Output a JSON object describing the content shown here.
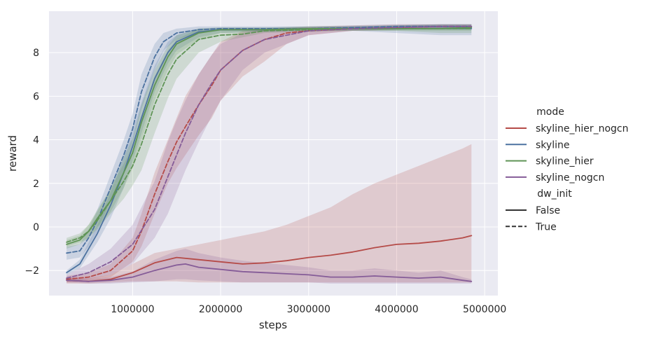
{
  "chart_data": {
    "type": "line",
    "title": "",
    "xlabel": "steps",
    "ylabel": "reward",
    "xlim": [
      50000,
      5150000
    ],
    "ylim": [
      -3.15,
      9.9
    ],
    "x_ticks": [
      1000000,
      2000000,
      3000000,
      4000000,
      5000000
    ],
    "x_tick_labels": [
      "1000000",
      "2000000",
      "3000000",
      "4000000",
      "5000000"
    ],
    "y_ticks": [
      -2,
      0,
      2,
      4,
      6,
      8
    ],
    "y_tick_labels": [
      "−2",
      "0",
      "2",
      "4",
      "6",
      "8"
    ],
    "grid": true,
    "background": "#eaeaf2",
    "legend": {
      "placement": "right-outside",
      "hue_title": "mode",
      "style_title": "dw_init",
      "hue_entries": [
        {
          "label": "skyline_hier_nogcn",
          "color": "#b54b48"
        },
        {
          "label": "skyline",
          "color": "#4c72a0"
        },
        {
          "label": "skyline_hier",
          "color": "#5f9456"
        },
        {
          "label": "skyline_nogcn",
          "color": "#855c98"
        }
      ],
      "style_entries": [
        {
          "label": "False",
          "dash": "solid"
        },
        {
          "label": "True",
          "dash": "dashed"
        }
      ]
    },
    "series": [
      {
        "mode": "skyline_hier_nogcn",
        "dw_init": "False",
        "color": "#b54b48",
        "dashed": false,
        "x": [
          250000,
          500000,
          750000,
          1000000,
          1250000,
          1500000,
          1750000,
          2000000,
          2250000,
          2500000,
          2750000,
          3000000,
          3250000,
          3500000,
          3750000,
          4000000,
          4250000,
          4500000,
          4750000,
          4850000
        ],
        "y": [
          -2.45,
          -2.5,
          -2.4,
          -2.1,
          -1.65,
          -1.4,
          -1.5,
          -1.6,
          -1.7,
          -1.65,
          -1.55,
          -1.4,
          -1.3,
          -1.15,
          -0.95,
          -0.8,
          -0.75,
          -0.65,
          -0.5,
          -0.4
        ],
        "lower": [
          -2.6,
          -2.6,
          -2.55,
          -2.5,
          -2.5,
          -2.5,
          -2.55,
          -2.55,
          -2.55,
          -2.55,
          -2.55,
          -2.55,
          -2.55,
          -2.55,
          -2.55,
          -2.55,
          -2.55,
          -2.55,
          -2.55,
          -2.55
        ],
        "upper": [
          -2.3,
          -2.35,
          -2.2,
          -1.7,
          -1.2,
          -1.0,
          -0.8,
          -0.6,
          -0.4,
          -0.2,
          0.1,
          0.5,
          0.9,
          1.5,
          2.0,
          2.4,
          2.8,
          3.2,
          3.6,
          3.8
        ]
      },
      {
        "mode": "skyline_hier_nogcn",
        "dw_init": "True",
        "color": "#b54b48",
        "dashed": true,
        "x": [
          250000,
          500000,
          750000,
          1000000,
          1100000,
          1250000,
          1400000,
          1500000,
          1600000,
          1750000,
          1900000,
          2000000,
          2250000,
          2500000,
          2750000,
          3000000,
          3500000,
          4000000,
          4500000,
          4850000
        ],
        "y": [
          -2.4,
          -2.3,
          -2.0,
          -1.1,
          -0.2,
          1.5,
          3.0,
          3.9,
          4.6,
          5.6,
          6.5,
          7.2,
          8.1,
          8.6,
          8.9,
          9.0,
          9.1,
          9.15,
          9.2,
          9.2
        ],
        "lower": [
          -2.55,
          -2.5,
          -2.3,
          -1.6,
          -0.9,
          0.6,
          2.0,
          2.7,
          3.3,
          4.2,
          5.0,
          5.8,
          6.9,
          7.6,
          8.4,
          8.8,
          9.0,
          9.05,
          9.1,
          9.1
        ],
        "upper": [
          -2.25,
          -2.1,
          -1.7,
          -0.5,
          0.6,
          2.5,
          4.0,
          5.0,
          6.0,
          7.0,
          7.9,
          8.5,
          9.0,
          9.1,
          9.15,
          9.2,
          9.25,
          9.3,
          9.3,
          9.3
        ]
      },
      {
        "mode": "skyline",
        "dw_init": "False",
        "color": "#4c72a0",
        "dashed": false,
        "x": [
          250000,
          400000,
          500000,
          600000,
          750000,
          900000,
          1000000,
          1100000,
          1250000,
          1400000,
          1500000,
          1750000,
          2000000,
          2500000,
          3000000,
          3500000,
          4000000,
          4500000,
          4850000
        ],
        "y": [
          -2.1,
          -1.7,
          -1.0,
          -0.3,
          1.0,
          2.5,
          3.7,
          5.0,
          6.8,
          8.0,
          8.5,
          8.95,
          9.05,
          9.05,
          9.1,
          9.1,
          9.1,
          9.1,
          9.1
        ],
        "lower": [
          -2.2,
          -1.9,
          -1.3,
          -0.7,
          0.4,
          1.8,
          3.0,
          4.3,
          6.2,
          7.5,
          8.1,
          8.7,
          8.9,
          8.95,
          9.0,
          9.0,
          8.9,
          8.8,
          8.8
        ],
        "upper": [
          -2.0,
          -1.5,
          -0.7,
          0.1,
          1.6,
          3.2,
          4.4,
          5.7,
          7.4,
          8.5,
          8.8,
          9.1,
          9.15,
          9.15,
          9.2,
          9.2,
          9.25,
          9.3,
          9.3
        ]
      },
      {
        "mode": "skyline",
        "dw_init": "True",
        "color": "#4c72a0",
        "dashed": true,
        "x": [
          250000,
          400000,
          500000,
          600000,
          750000,
          900000,
          1000000,
          1100000,
          1250000,
          1350000,
          1500000,
          1750000,
          2000000,
          2500000,
          3000000,
          3500000,
          4000000,
          4500000,
          4850000
        ],
        "y": [
          -1.2,
          -1.1,
          -0.5,
          0.3,
          1.8,
          3.3,
          4.5,
          6.2,
          7.8,
          8.5,
          8.9,
          9.05,
          9.1,
          9.1,
          9.1,
          9.15,
          9.2,
          9.2,
          9.2
        ],
        "lower": [
          -1.5,
          -1.4,
          -0.9,
          -0.2,
          1.2,
          2.6,
          3.8,
          5.4,
          7.2,
          8.1,
          8.6,
          8.9,
          9.0,
          9.0,
          9.0,
          9.05,
          9.1,
          9.1,
          9.1
        ],
        "upper": [
          -0.9,
          -0.8,
          -0.1,
          0.8,
          2.4,
          4.0,
          5.2,
          7.0,
          8.4,
          8.9,
          9.1,
          9.2,
          9.2,
          9.2,
          9.2,
          9.25,
          9.3,
          9.3,
          9.3
        ]
      },
      {
        "mode": "skyline_hier",
        "dw_init": "False",
        "color": "#5f9456",
        "dashed": false,
        "x": [
          250000,
          400000,
          500000,
          600000,
          750000,
          900000,
          1000000,
          1100000,
          1250000,
          1400000,
          1500000,
          1750000,
          2000000,
          2500000,
          3000000,
          3500000,
          4000000,
          4500000,
          4850000
        ],
        "y": [
          -0.8,
          -0.6,
          -0.2,
          0.4,
          1.2,
          2.5,
          3.4,
          4.8,
          6.5,
          7.8,
          8.4,
          8.9,
          9.05,
          9.05,
          9.1,
          9.1,
          9.1,
          9.1,
          9.15
        ],
        "lower": [
          -1.0,
          -0.8,
          -0.5,
          0.0,
          0.7,
          1.8,
          2.7,
          4.0,
          5.8,
          7.2,
          7.9,
          8.6,
          8.9,
          8.95,
          9.0,
          9.0,
          9.0,
          8.9,
          8.9
        ],
        "upper": [
          -0.6,
          -0.4,
          0.1,
          0.8,
          1.7,
          3.2,
          4.1,
          5.6,
          7.2,
          8.3,
          8.8,
          9.1,
          9.15,
          9.15,
          9.2,
          9.2,
          9.25,
          9.3,
          9.3
        ]
      },
      {
        "mode": "skyline_hier",
        "dw_init": "True",
        "color": "#5f9456",
        "dashed": true,
        "x": [
          250000,
          400000,
          500000,
          600000,
          750000,
          900000,
          1000000,
          1100000,
          1250000,
          1400000,
          1500000,
          1750000,
          2000000,
          2250000,
          2500000,
          3000000,
          3500000,
          4000000,
          4500000,
          4850000
        ],
        "y": [
          -0.7,
          -0.5,
          -0.2,
          0.3,
          1.2,
          2.1,
          2.8,
          3.8,
          5.6,
          7.0,
          7.7,
          8.6,
          8.8,
          8.85,
          9.0,
          9.05,
          9.1,
          9.1,
          9.1,
          9.1
        ],
        "lower": [
          -0.9,
          -0.7,
          -0.5,
          -0.1,
          0.6,
          1.3,
          1.9,
          2.6,
          4.3,
          5.9,
          6.8,
          8.0,
          8.5,
          8.7,
          8.9,
          8.95,
          9.0,
          9.0,
          9.0,
          9.0
        ],
        "upper": [
          -0.5,
          -0.3,
          0.1,
          0.7,
          1.8,
          2.9,
          3.7,
          5.0,
          6.9,
          8.1,
          8.6,
          9.1,
          9.1,
          9.1,
          9.1,
          9.15,
          9.2,
          9.2,
          9.2,
          9.2
        ]
      },
      {
        "mode": "skyline_nogcn",
        "dw_init": "False",
        "color": "#855c98",
        "dashed": false,
        "x": [
          250000,
          500000,
          750000,
          1000000,
          1250000,
          1500000,
          1600000,
          1750000,
          2000000,
          2250000,
          2500000,
          2750000,
          3000000,
          3250000,
          3500000,
          3750000,
          4000000,
          4250000,
          4500000,
          4750000,
          4850000
        ],
        "y": [
          -2.45,
          -2.5,
          -2.45,
          -2.3,
          -2.0,
          -1.75,
          -1.7,
          -1.85,
          -1.95,
          -2.05,
          -2.1,
          -2.15,
          -2.2,
          -2.3,
          -2.3,
          -2.25,
          -2.3,
          -2.35,
          -2.3,
          -2.45,
          -2.5
        ],
        "lower": [
          -2.55,
          -2.6,
          -2.6,
          -2.55,
          -2.5,
          -2.4,
          -2.4,
          -2.45,
          -2.5,
          -2.55,
          -2.55,
          -2.55,
          -2.55,
          -2.6,
          -2.6,
          -2.6,
          -2.6,
          -2.6,
          -2.6,
          -2.6,
          -2.6
        ],
        "upper": [
          -2.35,
          -2.4,
          -2.3,
          -2.05,
          -1.5,
          -1.1,
          -1.0,
          -1.2,
          -1.4,
          -1.55,
          -1.65,
          -1.75,
          -1.85,
          -2.0,
          -2.0,
          -1.9,
          -2.0,
          -2.1,
          -2.0,
          -2.3,
          -2.4
        ]
      },
      {
        "mode": "skyline_nogcn",
        "dw_init": "True",
        "color": "#855c98",
        "dashed": true,
        "x": [
          250000,
          500000,
          750000,
          1000000,
          1250000,
          1400000,
          1500000,
          1600000,
          1750000,
          1900000,
          2000000,
          2250000,
          2500000,
          3000000,
          3500000,
          4000000,
          4500000,
          4850000
        ],
        "y": [
          -2.35,
          -2.1,
          -1.6,
          -0.8,
          0.8,
          2.3,
          3.3,
          4.3,
          5.6,
          6.6,
          7.2,
          8.1,
          8.6,
          9.0,
          9.1,
          9.15,
          9.2,
          9.2
        ],
        "lower": [
          -2.5,
          -2.4,
          -2.2,
          -1.7,
          -0.5,
          0.6,
          1.6,
          2.6,
          3.9,
          5.1,
          5.8,
          7.2,
          8.0,
          8.8,
          9.0,
          9.05,
          9.1,
          9.1
        ],
        "upper": [
          -2.2,
          -1.7,
          -1.0,
          0.1,
          2.1,
          3.9,
          4.9,
          5.8,
          7.0,
          7.9,
          8.4,
          8.9,
          9.1,
          9.15,
          9.2,
          9.25,
          9.3,
          9.3
        ]
      }
    ]
  }
}
